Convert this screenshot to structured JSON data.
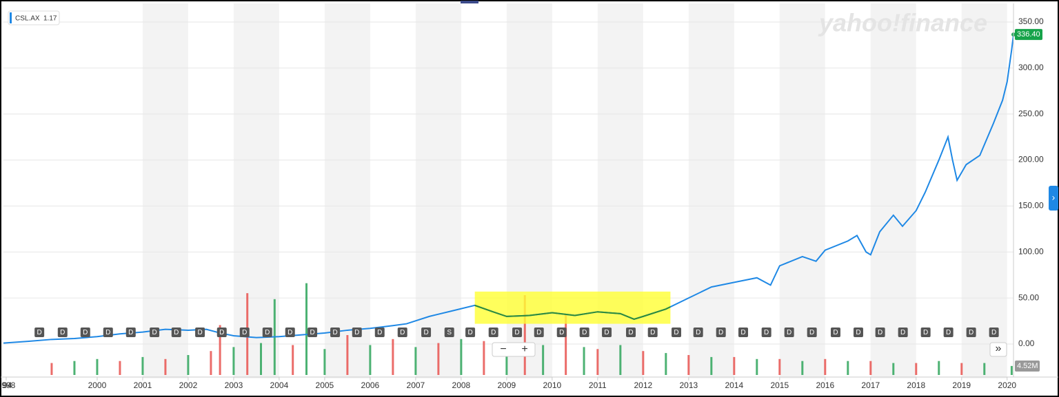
{
  "chart_data": {
    "type": "line",
    "watermark": "yahoo!finance",
    "series": [
      {
        "name": "CSL.AX",
        "legend_value": 1.17,
        "color": "#1e88e5",
        "highlight_color": "#2e8b3a",
        "x": [
          1997.94,
          1998.5,
          1999,
          1999.5,
          2000,
          2000.5,
          2001,
          2001.5,
          2002,
          2002.4,
          2002.7,
          2003,
          2003.5,
          2004,
          2004.5,
          2005,
          2005.5,
          2006,
          2006.5,
          2006.8,
          2007.3,
          2007.8,
          2008.3,
          2008.7,
          2009,
          2009.5,
          2010,
          2010.5,
          2011,
          2011.5,
          2011.8,
          2012,
          2012.5,
          2013,
          2013.5,
          2014,
          2014.5,
          2014.8,
          2015,
          2015.5,
          2015.8,
          2016,
          2016.5,
          2016.7,
          2016.9,
          2017,
          2017.2,
          2017.5,
          2017.7,
          2018,
          2018.2,
          2018.5,
          2018.7,
          2018.8,
          2018.9,
          2019.1,
          2019.4,
          2019.7,
          2019.9,
          2020,
          2020.1,
          2020.14
        ],
        "values": [
          1,
          3,
          5,
          6,
          8,
          11,
          13,
          16,
          15,
          16,
          12,
          9,
          7,
          8,
          10,
          12,
          15,
          17,
          20,
          22,
          30,
          36,
          42,
          35,
          30,
          31,
          34,
          31,
          35,
          33,
          27,
          30,
          38,
          50,
          62,
          67,
          72,
          64,
          85,
          95,
          90,
          102,
          112,
          118,
          100,
          97,
          122,
          140,
          128,
          145,
          165,
          200,
          225,
          200,
          178,
          195,
          205,
          240,
          265,
          285,
          320,
          336.4
        ],
        "last_value_label": "336.40"
      }
    ],
    "volume": {
      "x": [
        1999,
        1999.5,
        2000,
        2000.5,
        2001,
        2001.5,
        2002,
        2002.5,
        2002.7,
        2003,
        2003.3,
        2003.6,
        2003.9,
        2004.3,
        2004.6,
        2005,
        2005.5,
        2006,
        2006.5,
        2007,
        2007.5,
        2008,
        2008.5,
        2009,
        2009.4,
        2009.8,
        2010.3,
        2010.7,
        2011,
        2011.5,
        2012,
        2012.5,
        2013,
        2013.5,
        2014,
        2014.5,
        2015,
        2015.5,
        2016,
        2016.5,
        2017,
        2017.5,
        2018,
        2018.5,
        2019,
        2019.5,
        2020.1
      ],
      "values": [
        6,
        7,
        8,
        7,
        9,
        8,
        10,
        12,
        25,
        14,
        41,
        16,
        38,
        15,
        46,
        13,
        20,
        15,
        18,
        14,
        16,
        18,
        17,
        16,
        40,
        15,
        30,
        14,
        13,
        15,
        12,
        11,
        10,
        9,
        9,
        8,
        8,
        7,
        8,
        7,
        7,
        6,
        6,
        7,
        6,
        6,
        4.52
      ],
      "colors": [
        "#e8524f",
        "#2ea55a",
        "#2ea55a",
        "#e8524f",
        "#2ea55a",
        "#e8524f",
        "#2ea55a",
        "#e8524f",
        "#e8524f",
        "#2ea55a",
        "#e8524f",
        "#2ea55a",
        "#2ea55a",
        "#e8524f",
        "#2ea55a",
        "#2ea55a",
        "#e8524f",
        "#2ea55a",
        "#e8524f",
        "#2ea55a",
        "#e8524f",
        "#2ea55a",
        "#e8524f",
        "#2ea55a",
        "#e8524f",
        "#2ea55a",
        "#e8524f",
        "#2ea55a",
        "#e8524f",
        "#2ea55a",
        "#e8524f",
        "#2ea55a",
        "#e8524f",
        "#2ea55a",
        "#e8524f",
        "#2ea55a",
        "#e8524f",
        "#2ea55a",
        "#e8524f",
        "#2ea55a",
        "#e8524f",
        "#2ea55a",
        "#e8524f",
        "#2ea55a",
        "#e8524f",
        "#2ea55a",
        "#2ea55a"
      ],
      "last_value_label": "4.52M"
    },
    "highlight": {
      "x": [
        2008.3,
        2012.6
      ],
      "y": [
        22,
        57
      ],
      "color": "#ffff33"
    },
    "events": {
      "labels": [
        "D",
        "D",
        "D",
        "D",
        "D",
        "D",
        "D",
        "D",
        "D",
        "D",
        "D",
        "D",
        "D",
        "D",
        "D",
        "D",
        "D",
        "D",
        "S",
        "D",
        "D",
        "D",
        "D",
        "D",
        "D",
        "D",
        "D",
        "D",
        "D",
        "D",
        "D",
        "D",
        "D",
        "D",
        "D",
        "D",
        "D",
        "D",
        "D",
        "D",
        "D",
        "D",
        "D"
      ],
      "x": [
        1998.73,
        1999.24,
        1999.74,
        2000.24,
        2000.74,
        2001.26,
        2001.74,
        2002.26,
        2002.74,
        2003.24,
        2003.74,
        2004.24,
        2004.73,
        2005.23,
        2005.71,
        2006.21,
        2006.71,
        2007.23,
        2007.74,
        2008.2,
        2008.71,
        2009.23,
        2009.71,
        2010.21,
        2010.71,
        2011.2,
        2011.73,
        2012.21,
        2012.73,
        2013.21,
        2013.71,
        2014.2,
        2014.71,
        2015.21,
        2015.71,
        2016.23,
        2016.73,
        2017.21,
        2017.71,
        2018.21,
        2018.71,
        2019.21,
        2019.71
      ]
    },
    "xlim": [
      1997.94,
      2020.14
    ],
    "x_start_label": "94",
    "xticks": [
      1998,
      2000,
      2001,
      2002,
      2003,
      2004,
      2005,
      2006,
      2007,
      2008,
      2009,
      2010,
      2011,
      2012,
      2013,
      2014,
      2015,
      2016,
      2017,
      2018,
      2019,
      2020
    ],
    "ylim": [
      0,
      350
    ],
    "yticks": [
      {
        "value": 0,
        "label": "0.00"
      },
      {
        "value": 50,
        "label": "50.00"
      },
      {
        "value": 100,
        "label": "100.00"
      },
      {
        "value": 150,
        "label": "150.00"
      },
      {
        "value": 200,
        "label": "200.00"
      },
      {
        "value": 250,
        "label": "250.00"
      },
      {
        "value": 300,
        "label": "300.00"
      },
      {
        "value": 350,
        "label": "350.00"
      }
    ],
    "grid": true,
    "alternate_bands": true,
    "controls": {
      "zoom_out": "−",
      "zoom_in": "+",
      "next": "»",
      "side_tab": "›"
    }
  }
}
